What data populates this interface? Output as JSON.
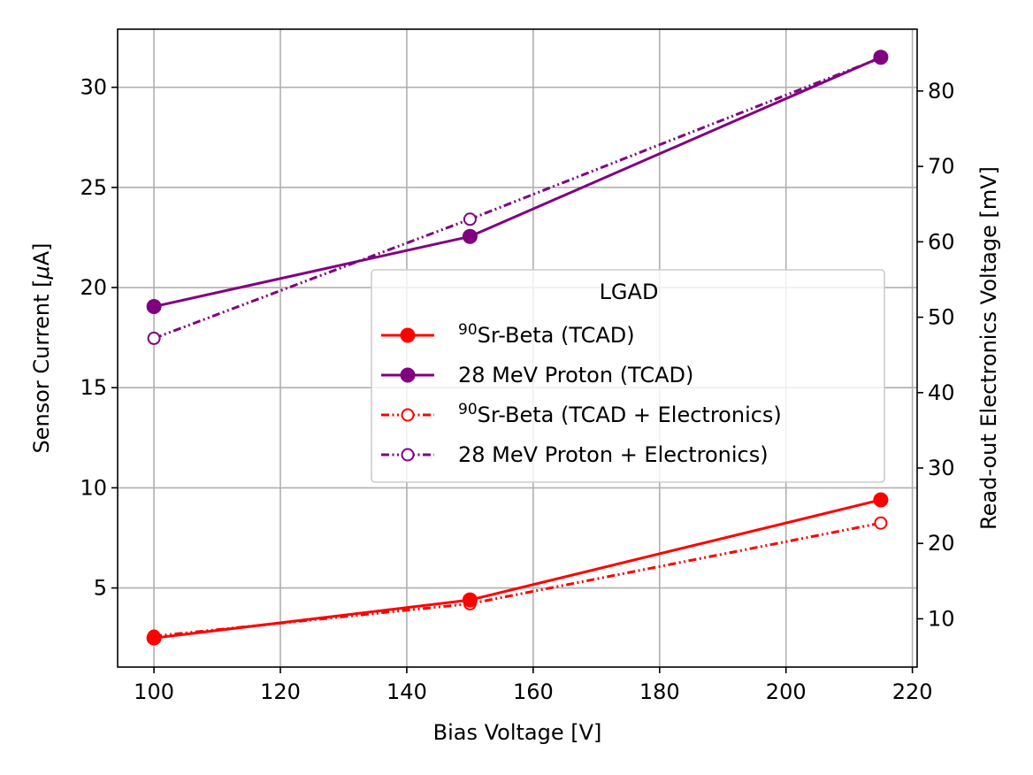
{
  "chart_data": {
    "type": "line",
    "xlabel": "Bias Voltage [V]",
    "ylabel_left_prefix": "Sensor Current [",
    "ylabel_left_mu": "μ",
    "ylabel_left_suffix": "A]",
    "ylabel_right": "Read-out Electronics Voltage [mV]",
    "xlim": [
      94.25,
      220.75
    ],
    "ylim_left": [
      1.05,
      32.9
    ],
    "ylim_right": [
      3.6,
      88.2
    ],
    "x_ticks": [
      100,
      120,
      140,
      160,
      180,
      200,
      220
    ],
    "y_left_ticks": [
      5,
      10,
      15,
      20,
      25,
      30
    ],
    "y_right_ticks": [
      10,
      20,
      30,
      40,
      50,
      60,
      70,
      80
    ],
    "grid": true,
    "legend": {
      "title": "LGAD",
      "placement": "center-right",
      "entries": [
        {
          "sup": "90",
          "text": "Sr-Beta (TCAD)",
          "color": "#ff0000",
          "linestyle": "solid",
          "marker": "filled"
        },
        {
          "sup": "",
          "text": "28 MeV Proton (TCAD)",
          "color": "#800080",
          "linestyle": "solid",
          "marker": "filled"
        },
        {
          "sup": "90",
          "text": "Sr-Beta (TCAD + Electronics)",
          "color": "#ff0000",
          "linestyle": "dashdotdot",
          "marker": "hollow"
        },
        {
          "sup": "",
          "text": "28 MeV Proton + Electronics)",
          "color": "#800080",
          "linestyle": "dashdotdot",
          "marker": "hollow"
        }
      ]
    },
    "series": [
      {
        "axis": "left",
        "color": "#ff0000",
        "linestyle": "solid",
        "marker": "filled",
        "x": [
          100,
          150,
          215
        ],
        "y": [
          2.5,
          4.4,
          9.4
        ]
      },
      {
        "axis": "left",
        "color": "#800080",
        "linestyle": "solid",
        "marker": "filled",
        "x": [
          100,
          150,
          215
        ],
        "y": [
          19.05,
          22.55,
          31.5
        ]
      },
      {
        "axis": "right",
        "color": "#ff0000",
        "linestyle": "dashdotdot",
        "marker": "hollow",
        "x": [
          100,
          150,
          215
        ],
        "y": [
          7.7,
          12.0,
          22.7
        ]
      },
      {
        "axis": "right",
        "color": "#800080",
        "linestyle": "dashdotdot",
        "marker": "hollow",
        "x": [
          100,
          150,
          215
        ],
        "y": [
          47.2,
          63.0,
          84.4
        ]
      }
    ]
  }
}
